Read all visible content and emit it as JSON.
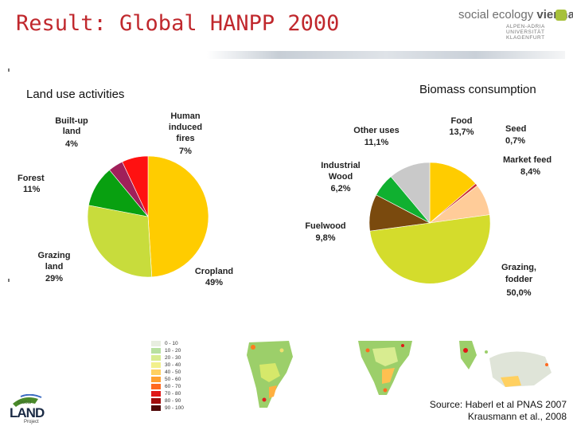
{
  "slide_title": "Result: Global HANPP 2000",
  "logo": {
    "main_plain": "social ecology ",
    "main_bold": "vienna",
    "sub_lines": [
      "ALPEN-ADRIA",
      "UNIVERSITÄT",
      "KLAGENFURT"
    ]
  },
  "chart_data": [
    {
      "type": "pie",
      "title": "Land use activities",
      "slices": [
        {
          "label": "Cropland",
          "value_label": "49%",
          "value": 49,
          "color": "#ffcc00"
        },
        {
          "label": "Grazing land",
          "label_lines": [
            "Grazing",
            "land"
          ],
          "value_label": "29%",
          "value": 29,
          "color": "#c8dc3c"
        },
        {
          "label": "Forest",
          "value_label": "11%",
          "value": 11,
          "color": "#08a010"
        },
        {
          "label": "Built-up land",
          "label_lines": [
            "Built-up",
            "land"
          ],
          "value_label": "4%",
          "value": 4,
          "color": "#a0205a"
        },
        {
          "label": "Human induced fires",
          "label_lines": [
            "Human",
            "induced",
            "fires"
          ],
          "value_label": "7%",
          "value": 7,
          "color": "#ff1111"
        }
      ]
    },
    {
      "type": "pie",
      "title": "Biomass consumption",
      "slices": [
        {
          "label": "Food",
          "value_label": "13,7%",
          "value": 13.7,
          "color": "#ffcc00"
        },
        {
          "label": "Seed",
          "value_label": "0,7%",
          "value": 0.7,
          "color": "#cc3333"
        },
        {
          "label": "Market feed",
          "value_label": "8,4%",
          "value": 8.4,
          "color": "#ffcc99"
        },
        {
          "label": "Grazing, fodder",
          "label_lines": [
            "Grazing,",
            "fodder"
          ],
          "value_label": "50,0%",
          "value": 50.0,
          "color": "#d4dc2c"
        },
        {
          "label": "Fuelwood",
          "value_label": "9,8%",
          "value": 9.8,
          "color": "#7a4a0e"
        },
        {
          "label": "Industrial Wood",
          "label_lines": [
            "Industrial",
            "Wood"
          ],
          "value_label": "6,2%",
          "value": 6.2,
          "color": "#10b030"
        },
        {
          "label": "Other uses",
          "value_label": "11,1%",
          "value": 11.1,
          "color": "#c9c9c9"
        }
      ]
    }
  ],
  "map_legend": {
    "items": [
      {
        "label": "0 - 10",
        "color": "#e8eee0"
      },
      {
        "label": "10 - 20",
        "color": "#b8e0a0"
      },
      {
        "label": "20 - 30",
        "color": "#d8ec90"
      },
      {
        "label": "30 - 40",
        "color": "#f2f08c"
      },
      {
        "label": "40 - 50",
        "color": "#ffd060"
      },
      {
        "label": "50 - 60",
        "color": "#ffa030"
      },
      {
        "label": "60 - 70",
        "color": "#ff6a20"
      },
      {
        "label": "70 - 80",
        "color": "#e01818"
      },
      {
        "label": "80 - 90",
        "color": "#a00c0c"
      },
      {
        "label": "90 - 100",
        "color": "#500808"
      }
    ]
  },
  "source_lines": [
    "Source: Haberl et al PNAS 2007",
    "Krausmann et al., 2008"
  ],
  "glp_logo": {
    "top": "Global",
    "main": "LAND",
    "bottom": "Project"
  }
}
